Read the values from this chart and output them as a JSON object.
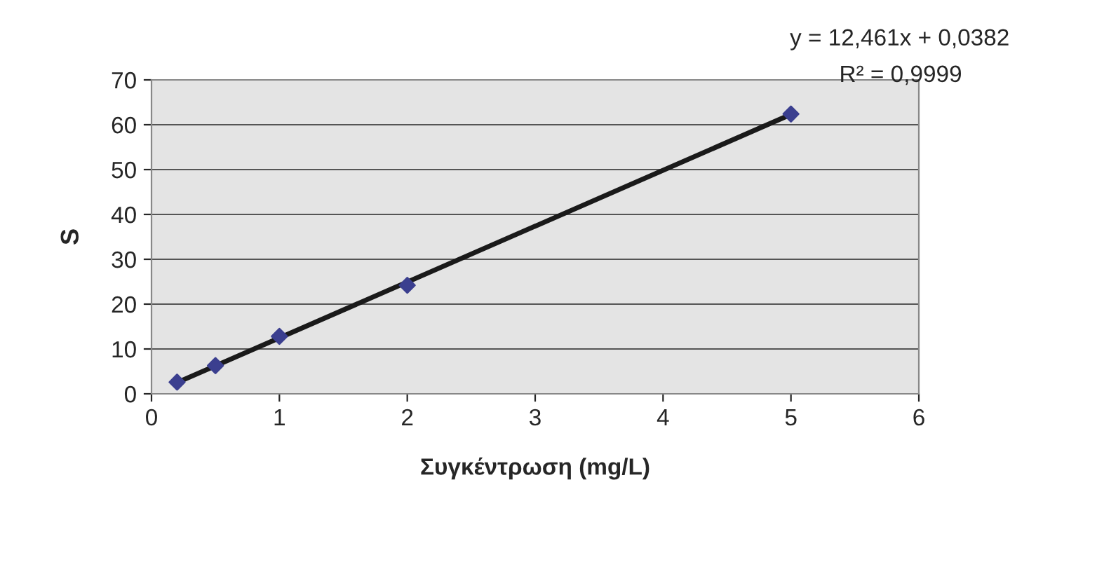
{
  "chart_data": {
    "type": "scatter",
    "xlabel": "Συγκέντρωση (mg/L)",
    "ylabel": "S",
    "annotations": [
      "y = 12,461x + 0,0382",
      "R² = 0,9999"
    ],
    "series": [
      {
        "color": "#3b3f8f",
        "marker": "diamond",
        "x": [
          0.2,
          0.5,
          1,
          2,
          5
        ],
        "values": [
          2.6,
          6.3,
          12.8,
          24.2,
          62.4
        ]
      },
      {
        "type": "line",
        "color": "#1a1a1a",
        "marker": "none",
        "line_style": "solid",
        "x": [
          0.2,
          5
        ],
        "values": [
          2.5,
          62.3
        ]
      }
    ],
    "xlim": [
      0,
      6
    ],
    "xticks": [
      0,
      1,
      2,
      3,
      4,
      5,
      6
    ],
    "ylim": [
      0,
      70
    ],
    "yticks": [
      0,
      10,
      20,
      30,
      40,
      50,
      60,
      70
    ],
    "grid": "y",
    "legend": false
  }
}
